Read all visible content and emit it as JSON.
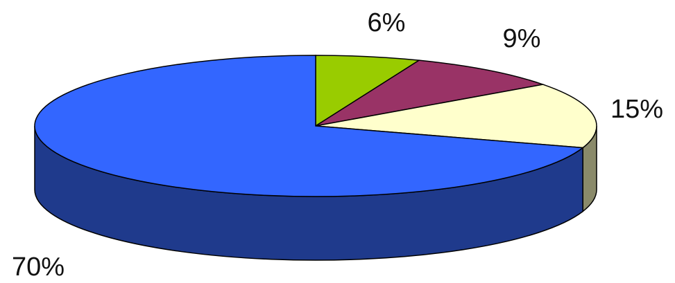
{
  "chart_data": {
    "type": "pie",
    "style": "3d",
    "title": "",
    "slices": [
      {
        "label": "6%",
        "value": 6,
        "color": "#99cc00",
        "side_color": "#6b8f00"
      },
      {
        "label": "9%",
        "value": 9,
        "color": "#993366",
        "side_color": "#6b2447"
      },
      {
        "label": "15%",
        "value": 15,
        "color": "#ffffcc",
        "side_color": "#8a8a6a"
      },
      {
        "label": "70%",
        "value": 70,
        "color": "#3366ff",
        "side_color": "#1f3a8c"
      }
    ],
    "legend": "none"
  }
}
